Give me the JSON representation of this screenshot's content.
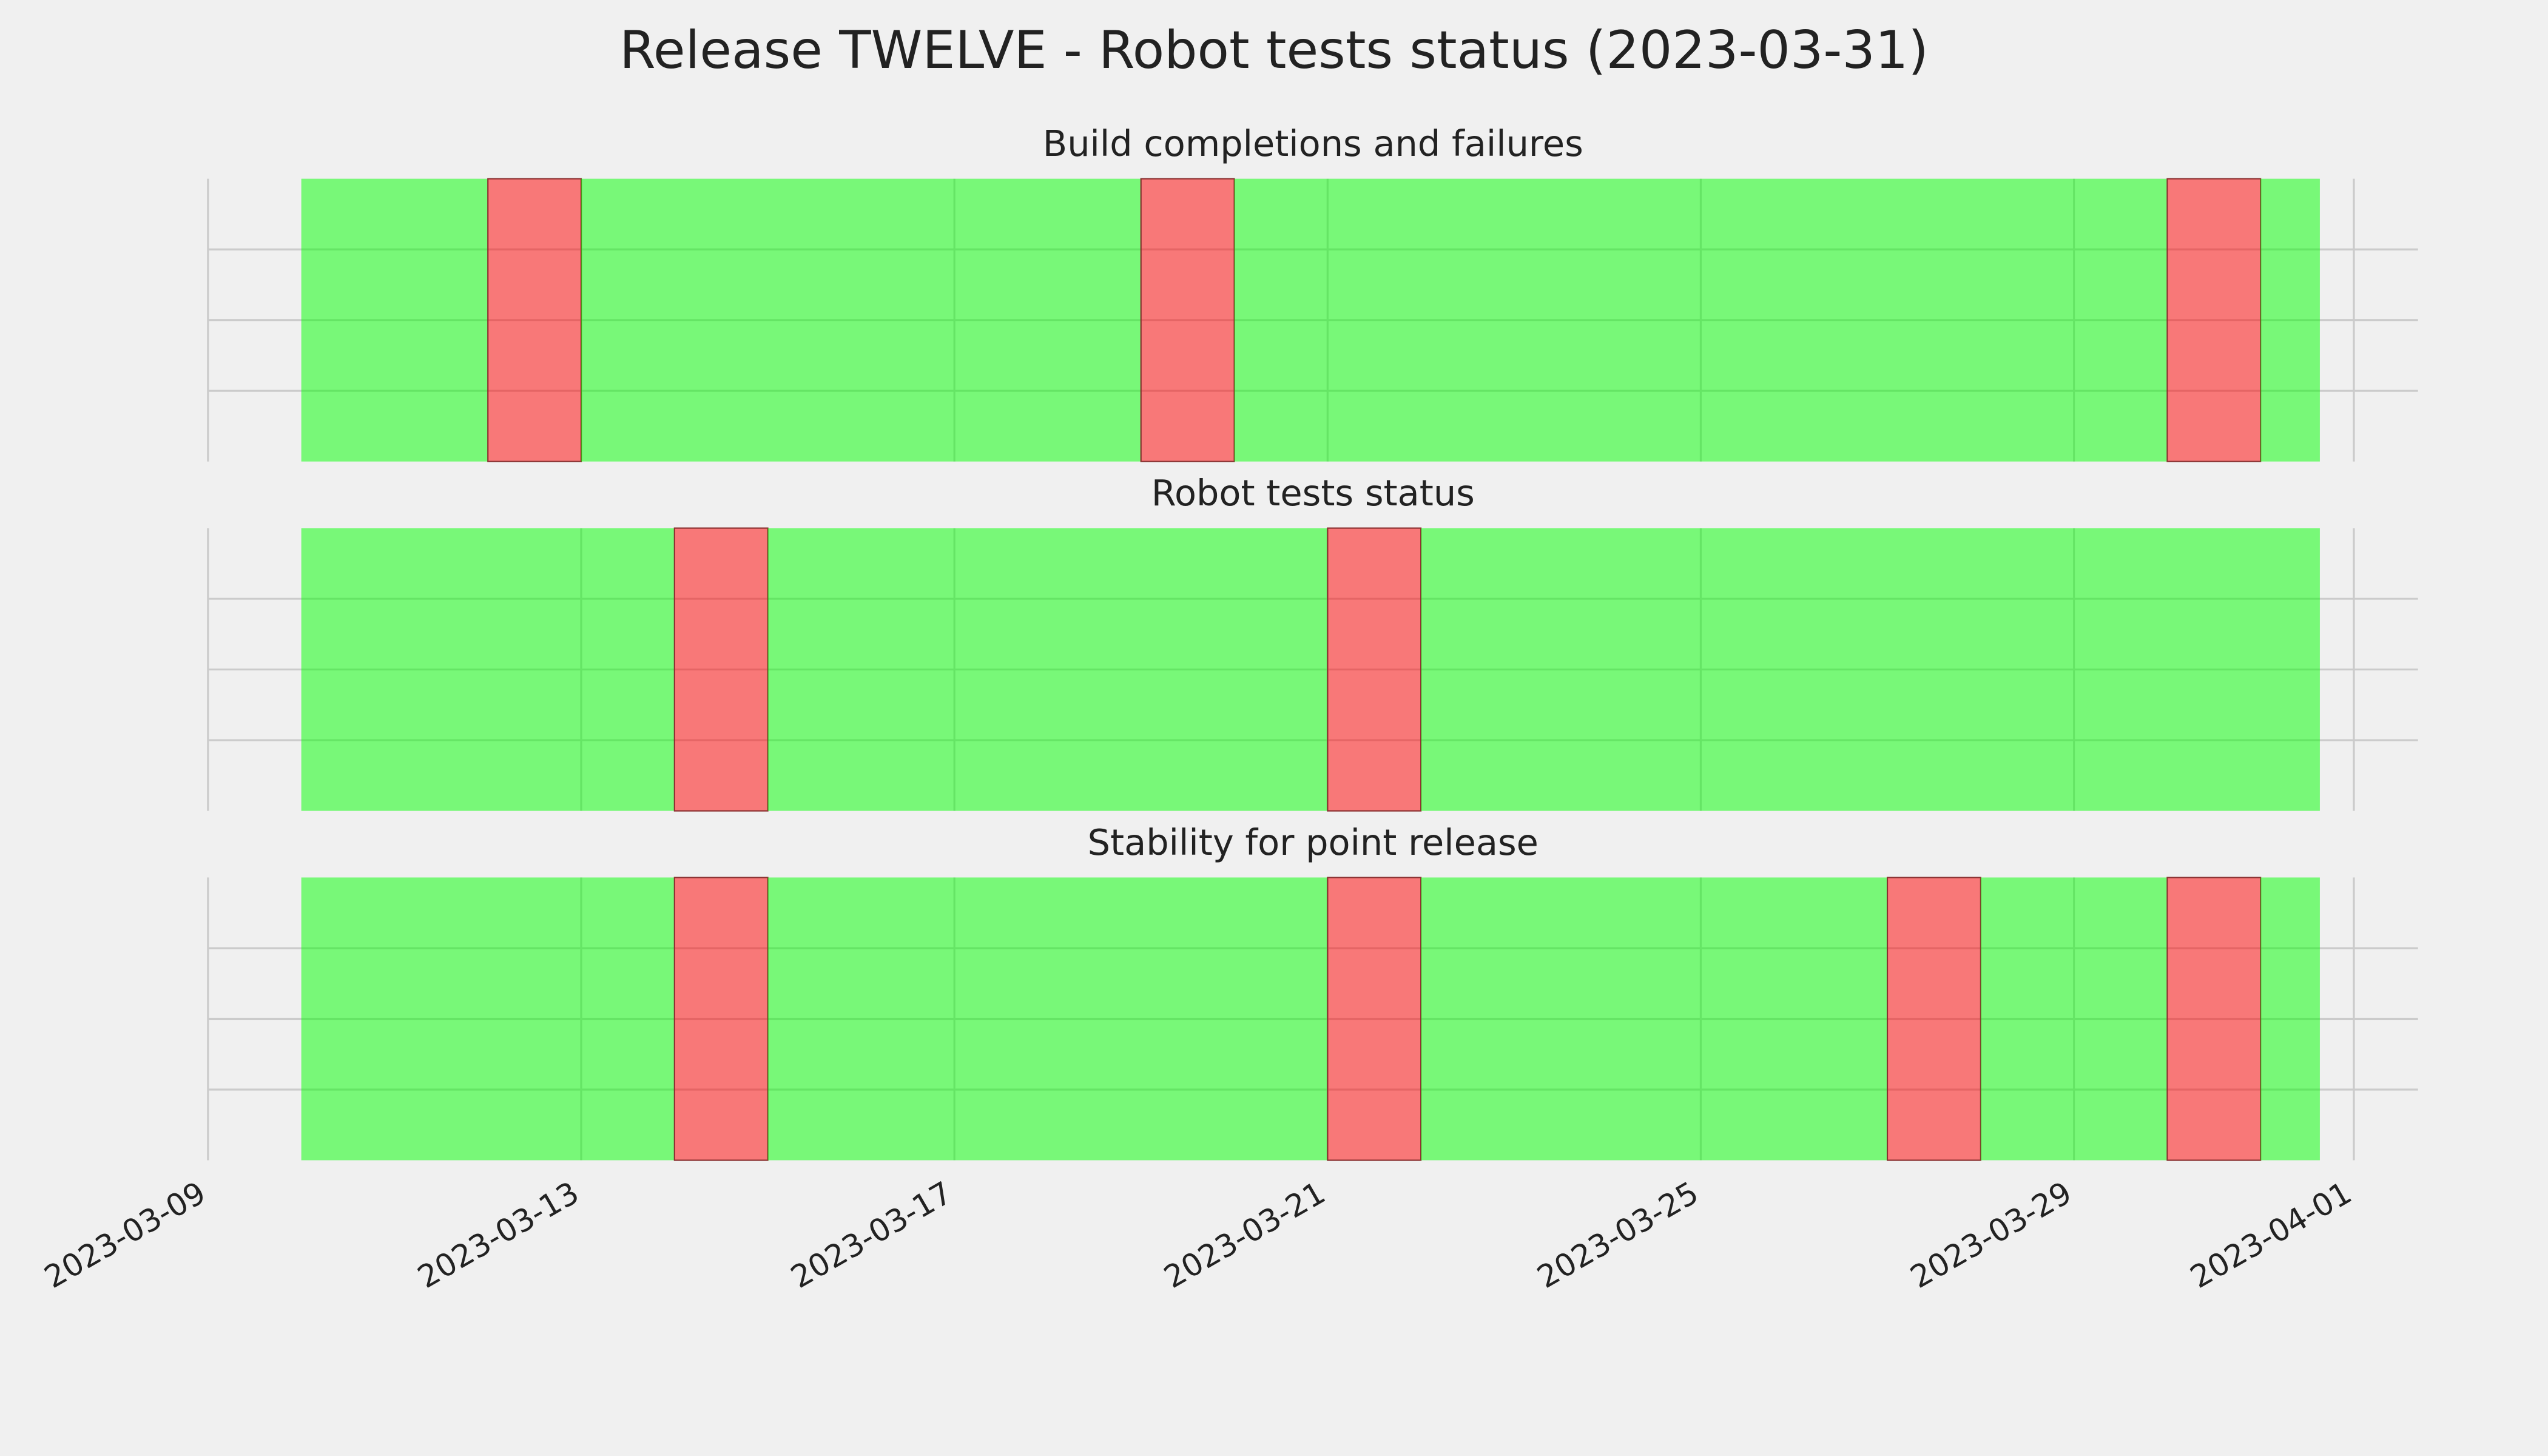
{
  "title": "Release TWELVE - Robot tests status (2023-03-31)",
  "chart_data": [
    {
      "type": "timeline",
      "title": "Build completions and failures",
      "segments": [
        {
          "start": "2023-03-10",
          "end": "2023-03-12",
          "color": "#00ff00"
        },
        {
          "start": "2023-03-12",
          "end": "2023-03-13",
          "color": "#ff0000"
        },
        {
          "start": "2023-03-13",
          "end": "2023-03-19",
          "color": "#00ff00"
        },
        {
          "start": "2023-03-19",
          "end": "2023-03-20",
          "color": "#ff0000"
        },
        {
          "start": "2023-03-20",
          "end": "2023-03-30",
          "color": "#00ff00"
        },
        {
          "start": "2023-03-30",
          "end": "2023-03-31",
          "color": "#ff0000"
        },
        {
          "start": "2023-03-31",
          "end": "2023-03-31T15:15",
          "color": "#00ff00"
        }
      ],
      "alpha": 0.5,
      "xlim": [
        "2023-03-09",
        "2023-04-01T16:30"
      ],
      "xticks": [
        "2023-03-09",
        "2023-03-13",
        "2023-03-17",
        "2023-03-21",
        "2023-03-25",
        "2023-03-29",
        "2023-04-01"
      ],
      "ylim": [
        0,
        1
      ],
      "yticks": [
        0.25,
        0.5,
        0.75
      ],
      "grid": true
    },
    {
      "type": "timeline",
      "title": "Robot tests status",
      "segments": [
        {
          "start": "2023-03-10",
          "end": "2023-03-14",
          "color": "#00ff00"
        },
        {
          "start": "2023-03-14",
          "end": "2023-03-15",
          "color": "#ff0000"
        },
        {
          "start": "2023-03-15",
          "end": "2023-03-21",
          "color": "#00ff00"
        },
        {
          "start": "2023-03-21",
          "end": "2023-03-22",
          "color": "#ff0000"
        },
        {
          "start": "2023-03-22",
          "end": "2023-03-31T15:15",
          "color": "#00ff00"
        }
      ],
      "alpha": 0.5,
      "xlim": [
        "2023-03-09",
        "2023-04-01T16:30"
      ],
      "xticks": [
        "2023-03-09",
        "2023-03-13",
        "2023-03-17",
        "2023-03-21",
        "2023-03-25",
        "2023-03-29",
        "2023-04-01"
      ],
      "ylim": [
        0,
        1
      ],
      "yticks": [
        0.25,
        0.5,
        0.75
      ],
      "grid": true
    },
    {
      "type": "timeline",
      "title": "Stability for point release",
      "segments": [
        {
          "start": "2023-03-10",
          "end": "2023-03-14",
          "color": "#00ff00"
        },
        {
          "start": "2023-03-14",
          "end": "2023-03-15",
          "color": "#ff0000"
        },
        {
          "start": "2023-03-15",
          "end": "2023-03-21",
          "color": "#00ff00"
        },
        {
          "start": "2023-03-21",
          "end": "2023-03-22",
          "color": "#ff0000"
        },
        {
          "start": "2023-03-22",
          "end": "2023-03-27",
          "color": "#00ff00"
        },
        {
          "start": "2023-03-27",
          "end": "2023-03-28",
          "color": "#ff0000"
        },
        {
          "start": "2023-03-28",
          "end": "2023-03-30",
          "color": "#00ff00"
        },
        {
          "start": "2023-03-30",
          "end": "2023-03-31",
          "color": "#ff0000"
        },
        {
          "start": "2023-03-31",
          "end": "2023-03-31T15:15",
          "color": "#00ff00"
        }
      ],
      "alpha": 0.5,
      "xlim": [
        "2023-03-09",
        "2023-04-01T16:30"
      ],
      "xticks": [
        "2023-03-09",
        "2023-03-13",
        "2023-03-17",
        "2023-03-21",
        "2023-03-25",
        "2023-03-29",
        "2023-04-01"
      ],
      "ylim": [
        0,
        1
      ],
      "yticks": [
        0.25,
        0.5,
        0.75
      ],
      "grid": true
    }
  ]
}
